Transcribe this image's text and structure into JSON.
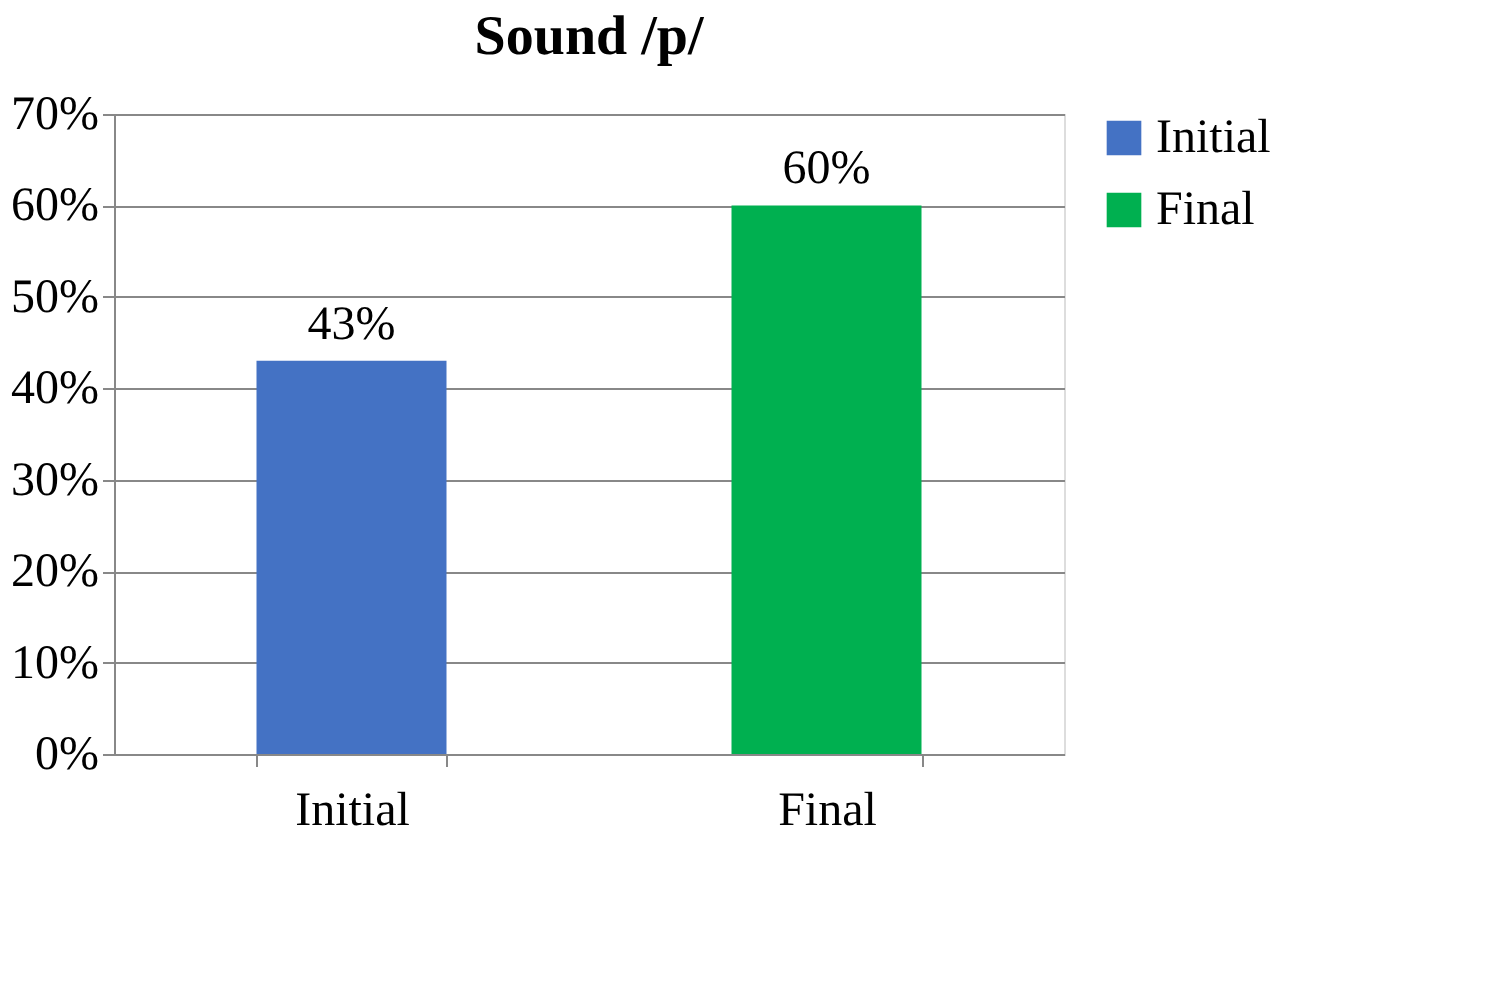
{
  "chart_data": {
    "type": "bar",
    "title": "Sound /p/",
    "categories": [
      "Initial",
      "Final"
    ],
    "series": [
      {
        "name": "Initial",
        "color": "#4472c4",
        "values": [
          43,
          null
        ]
      },
      {
        "name": "Final",
        "color": "#00b050",
        "values": [
          null,
          60
        ]
      }
    ],
    "ylim": [
      0,
      70
    ],
    "yticks": [
      {
        "value": 0,
        "label": "0%"
      },
      {
        "value": 10,
        "label": "10%"
      },
      {
        "value": 20,
        "label": "20%"
      },
      {
        "value": 30,
        "label": "30%"
      },
      {
        "value": 40,
        "label": "40%"
      },
      {
        "value": 50,
        "label": "50%"
      },
      {
        "value": 60,
        "label": "60%"
      },
      {
        "value": 70,
        "label": "70%"
      }
    ],
    "value_labels": [
      "43%",
      "60%"
    ],
    "grid": "y",
    "legend": "right"
  }
}
